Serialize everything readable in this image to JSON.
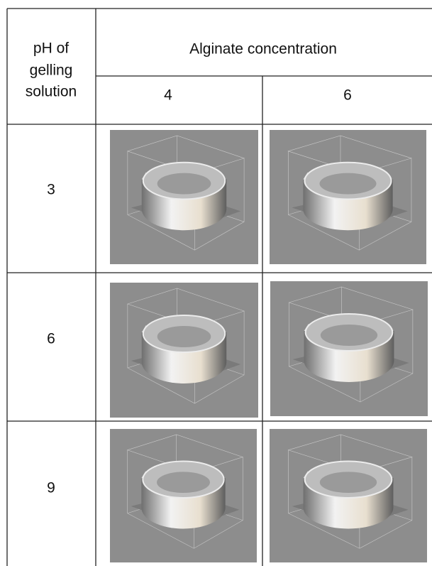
{
  "header": {
    "row_label": [
      "pH of",
      "gelling",
      "solution"
    ],
    "column_group": "Alginate concentration",
    "columns": [
      "4",
      "6"
    ]
  },
  "rows": [
    {
      "ph": "3"
    },
    {
      "ph": "6"
    },
    {
      "ph": "9"
    }
  ]
}
